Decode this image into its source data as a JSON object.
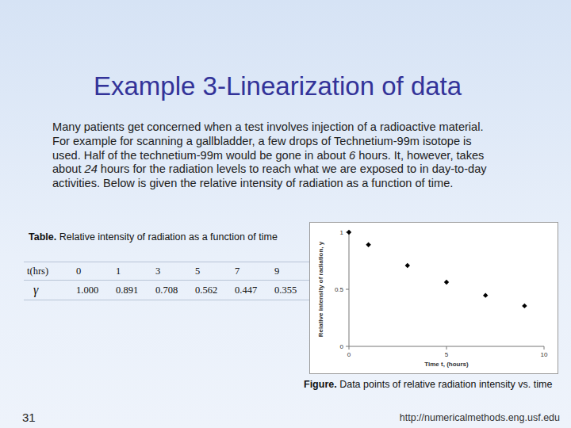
{
  "slide": {
    "title": "Example 3-Linearization of data",
    "paragraph": [
      "Many patients get concerned when a test involves injection of a radioactive material.  For example for scanning a gallbladder, a few drops of Technetium-99m isotope is used.  Half of the technetium-99m would be gone in about ",
      "6",
      " hours.  It, however, takes about ",
      "24",
      " hours for the radiation levels to reach what we are exposed to in day-to-day activities.  Below is given the relative intensity of radiation as a function of time."
    ],
    "table_caption": {
      "label": "Table.",
      "text": "Relative intensity of radiation as a function of time"
    },
    "table": {
      "rows": [
        [
          "t(hrs)",
          "0",
          "1",
          "3",
          "5",
          "7",
          "9"
        ],
        [
          "γ",
          "1.000",
          "0.891",
          "0.708",
          "0.562",
          "0.447",
          "0.355"
        ]
      ]
    },
    "figure_caption": {
      "label": "Figure.",
      "text": "Data points of relative radiation intensity vs. time"
    },
    "page_number": "31",
    "url": "http://numericalmethods.eng.usf.edu"
  },
  "chart_data": {
    "type": "scatter",
    "x_label": "Time  t, (hours)",
    "y_label": "Relative intensity of radiation, y",
    "x": [
      0,
      1,
      3,
      5,
      7,
      9
    ],
    "values": [
      1.0,
      0.891,
      0.708,
      0.562,
      0.447,
      0.355
    ],
    "color": "#000000",
    "marker": "diamond",
    "xlim": [
      0,
      10
    ],
    "ylim": [
      0,
      1
    ],
    "xticks": [
      0,
      5,
      10
    ],
    "yticks": [
      0,
      0.5,
      1
    ],
    "grid": false
  }
}
